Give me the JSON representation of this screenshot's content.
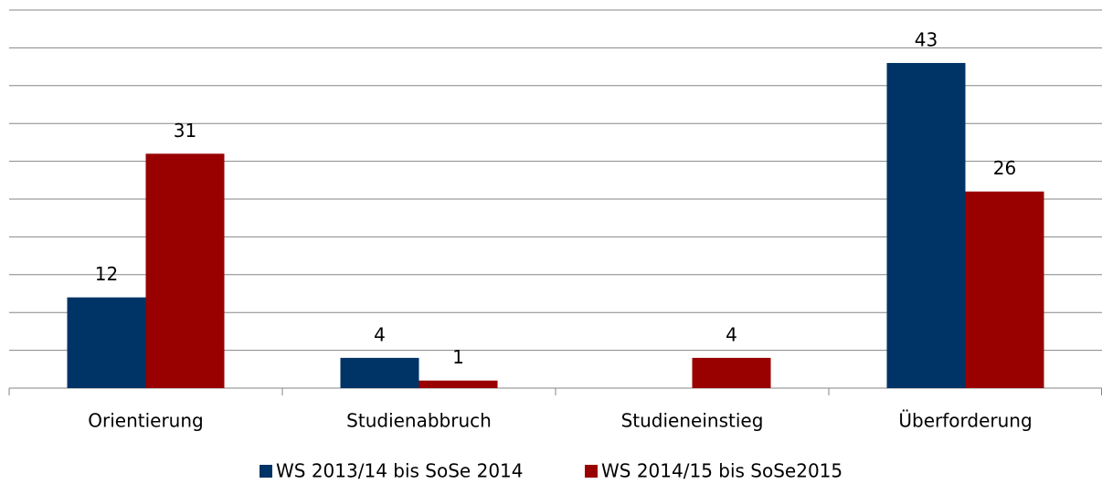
{
  "chart_data": {
    "type": "bar",
    "categories": [
      "Orientierung",
      "Studienabbruch",
      "Studieneinstieg",
      "Überforderung"
    ],
    "series": [
      {
        "name": "WS 2013/14 bis SoSe 2014",
        "color": "#003366",
        "values": [
          12,
          4,
          null,
          43
        ]
      },
      {
        "name": "WS 2014/15 bis SoSe2015",
        "color": "#990000",
        "values": [
          31,
          1,
          4,
          26
        ]
      }
    ],
    "ylim": [
      0,
      50
    ],
    "yticks": [
      0,
      5,
      10,
      15,
      20,
      25,
      30,
      35,
      40,
      45,
      50
    ],
    "grid": true,
    "legend": "bottom"
  }
}
